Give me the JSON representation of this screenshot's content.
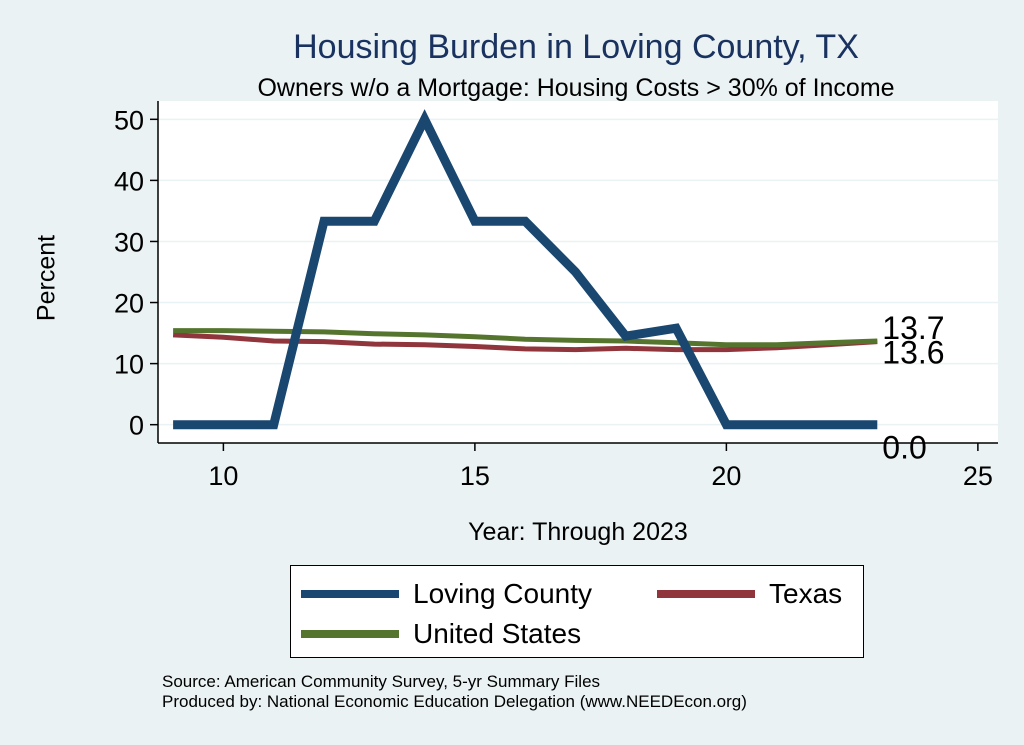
{
  "chart_data": {
    "type": "line",
    "title": "Housing Burden in Loving County, TX",
    "subtitle": "Owners w/o a Mortgage: Housing Costs > 30% of Income",
    "xlabel": "Year: Through 2023",
    "ylabel": "Percent",
    "xlim": [
      8.7,
      25.4
    ],
    "ylim": [
      -3,
      53
    ],
    "xticks": [
      10,
      15,
      20,
      25
    ],
    "yticks": [
      0,
      10,
      20,
      30,
      40,
      50
    ],
    "grid": "horizontal",
    "legend_position": "bottom",
    "series": [
      {
        "name": "Loving County",
        "color": "#1a476f",
        "x": [
          9,
          10,
          11,
          12,
          13,
          14,
          15,
          16,
          17,
          18,
          19,
          20,
          21,
          22,
          23
        ],
        "values": [
          0,
          0,
          0,
          33.3,
          33.3,
          50,
          33.3,
          33.3,
          25,
          14.5,
          15.8,
          0,
          0,
          0,
          0
        ]
      },
      {
        "name": "Texas",
        "color": "#90353b",
        "x": [
          9,
          10,
          11,
          12,
          13,
          14,
          15,
          16,
          17,
          18,
          19,
          20,
          21,
          22,
          23
        ],
        "values": [
          14.7,
          14.3,
          13.7,
          13.6,
          13.2,
          13.1,
          12.8,
          12.4,
          12.3,
          12.5,
          12.3,
          12.3,
          12.6,
          13.1,
          13.6
        ]
      },
      {
        "name": "United States",
        "color": "#55752f",
        "x": [
          9,
          10,
          11,
          12,
          13,
          14,
          15,
          16,
          17,
          18,
          19,
          20,
          21,
          22,
          23
        ],
        "values": [
          15.4,
          15.4,
          15.3,
          15.2,
          14.9,
          14.7,
          14.4,
          14,
          13.8,
          13.7,
          13.4,
          13.1,
          13.1,
          13.4,
          13.7
        ]
      }
    ],
    "end_labels": [
      "13.7",
      "13.6",
      "0.0"
    ],
    "source_lines": [
      "Source: American Community Survey, 5-yr Summary Files",
      "Produced by: National Economic Education Delegation (www.NEEDEcon.org)"
    ]
  }
}
